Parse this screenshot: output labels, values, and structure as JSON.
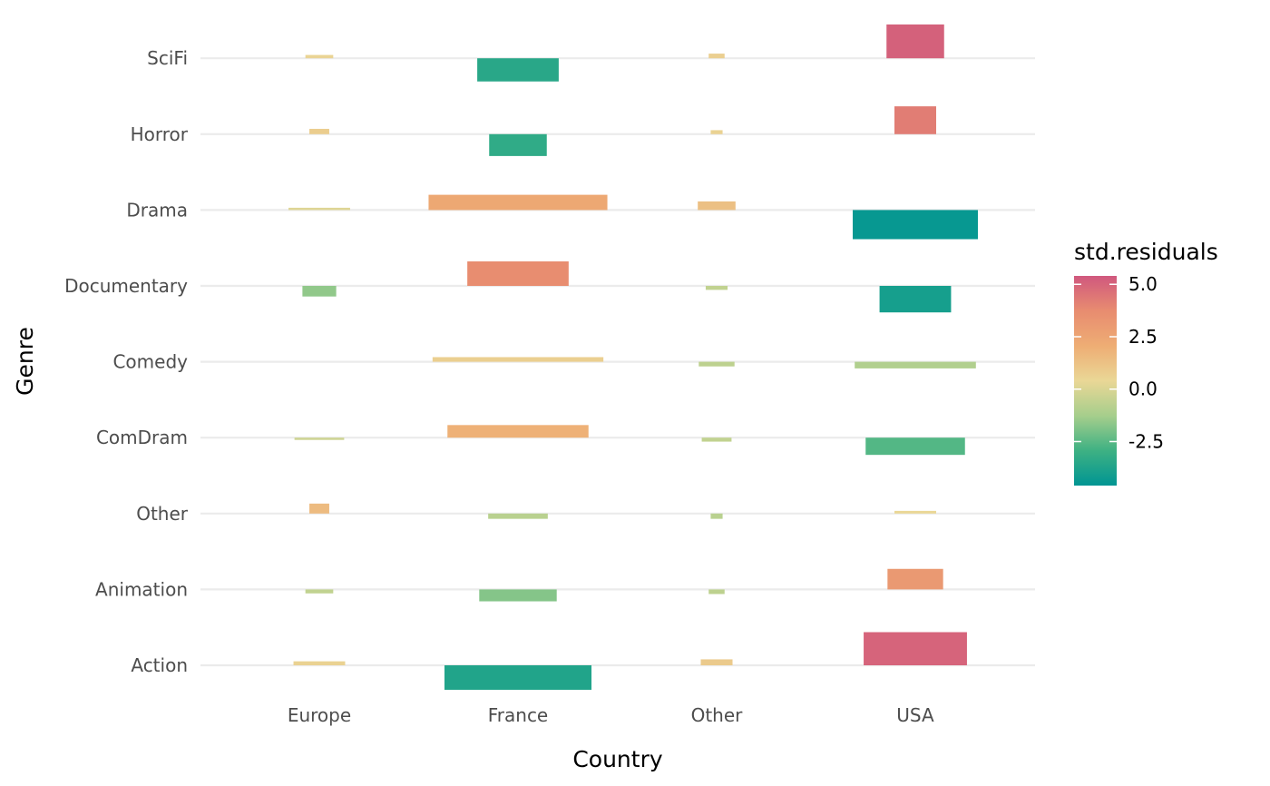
{
  "chart_data": {
    "type": "bar",
    "subtype": "mosaic-residual-bars",
    "xlabel": "Country",
    "ylabel": "Genre",
    "x_categories": [
      "Europe",
      "France",
      "Other",
      "USA"
    ],
    "y_categories": [
      "Action",
      "Animation",
      "Other",
      "ComDram",
      "Comedy",
      "Documentary",
      "Drama",
      "Horror",
      "SciFi"
    ],
    "grid": true,
    "legend": {
      "title": "std.residuals",
      "position": "right",
      "range": [
        -4.6,
        5.4
      ],
      "breaks": [
        5.0,
        2.5,
        0.0,
        -2.5
      ],
      "break_labels": [
        "5.0",
        "2.5",
        "0.0",
        "-2.5"
      ],
      "colors": [
        "#009593",
        "#3EB183",
        "#A6CE8C",
        "#EAD796",
        "#EEAD74",
        "#E88C70",
        "#D0587E"
      ]
    },
    "cells": [
      {
        "country": "Europe",
        "genre": "SciFi",
        "residual": 0.5,
        "width": 0.14
      },
      {
        "country": "Europe",
        "genre": "Horror",
        "residual": 0.8,
        "width": 0.1
      },
      {
        "country": "Europe",
        "genre": "Drama",
        "residual": 0.1,
        "width": 0.31
      },
      {
        "country": "Europe",
        "genre": "Documentary",
        "residual": -1.6,
        "width": 0.17
      },
      {
        "country": "Europe",
        "genre": "Comedy",
        "residual": 0.0,
        "width": 0.0
      },
      {
        "country": "Europe",
        "genre": "ComDram",
        "residual": -0.3,
        "width": 0.25
      },
      {
        "country": "Europe",
        "genre": "Other",
        "residual": 1.5,
        "width": 0.1
      },
      {
        "country": "Europe",
        "genre": "Animation",
        "residual": -0.6,
        "width": 0.14
      },
      {
        "country": "Europe",
        "genre": "Action",
        "residual": 0.6,
        "width": 0.26
      },
      {
        "country": "France",
        "genre": "SciFi",
        "residual": -3.5,
        "width": 0.41
      },
      {
        "country": "France",
        "genre": "Horror",
        "residual": -3.3,
        "width": 0.29
      },
      {
        "country": "France",
        "genre": "Drama",
        "residual": 2.3,
        "width": 0.9
      },
      {
        "country": "France",
        "genre": "Documentary",
        "residual": 3.7,
        "width": 0.51
      },
      {
        "country": "France",
        "genre": "Comedy",
        "residual": 0.7,
        "width": 0.86
      },
      {
        "country": "France",
        "genre": "ComDram",
        "residual": 1.9,
        "width": 0.71
      },
      {
        "country": "France",
        "genre": "Other",
        "residual": -0.8,
        "width": 0.3
      },
      {
        "country": "France",
        "genre": "Animation",
        "residual": -1.8,
        "width": 0.39
      },
      {
        "country": "France",
        "genre": "Action",
        "residual": -3.7,
        "width": 0.74
      },
      {
        "country": "Other",
        "genre": "SciFi",
        "residual": 0.7,
        "width": 0.08
      },
      {
        "country": "Other",
        "genre": "Horror",
        "residual": 0.6,
        "width": 0.06
      },
      {
        "country": "Other",
        "genre": "Drama",
        "residual": 1.3,
        "width": 0.19
      },
      {
        "country": "Other",
        "genre": "Documentary",
        "residual": -0.6,
        "width": 0.11
      },
      {
        "country": "Other",
        "genre": "Comedy",
        "residual": -0.7,
        "width": 0.18
      },
      {
        "country": "Other",
        "genre": "ComDram",
        "residual": -0.6,
        "width": 0.15
      },
      {
        "country": "Other",
        "genre": "Other",
        "residual": -0.8,
        "width": 0.06
      },
      {
        "country": "Other",
        "genre": "Animation",
        "residual": -0.7,
        "width": 0.08
      },
      {
        "country": "Other",
        "genre": "Action",
        "residual": 0.9,
        "width": 0.16
      },
      {
        "country": "USA",
        "genre": "SciFi",
        "residual": 5.1,
        "width": 0.29
      },
      {
        "country": "USA",
        "genre": "Horror",
        "residual": 4.2,
        "width": 0.21
      },
      {
        "country": "USA",
        "genre": "Drama",
        "residual": -4.4,
        "width": 0.63
      },
      {
        "country": "USA",
        "genre": "Documentary",
        "residual": -4.0,
        "width": 0.36
      },
      {
        "country": "USA",
        "genre": "Comedy",
        "residual": -1.0,
        "width": 0.61
      },
      {
        "country": "USA",
        "genre": "ComDram",
        "residual": -2.6,
        "width": 0.5
      },
      {
        "country": "USA",
        "genre": "Other",
        "residual": 0.4,
        "width": 0.21
      },
      {
        "country": "USA",
        "genre": "Animation",
        "residual": 3.1,
        "width": 0.28
      },
      {
        "country": "USA",
        "genre": "Action",
        "residual": 5.0,
        "width": 0.52
      }
    ]
  }
}
